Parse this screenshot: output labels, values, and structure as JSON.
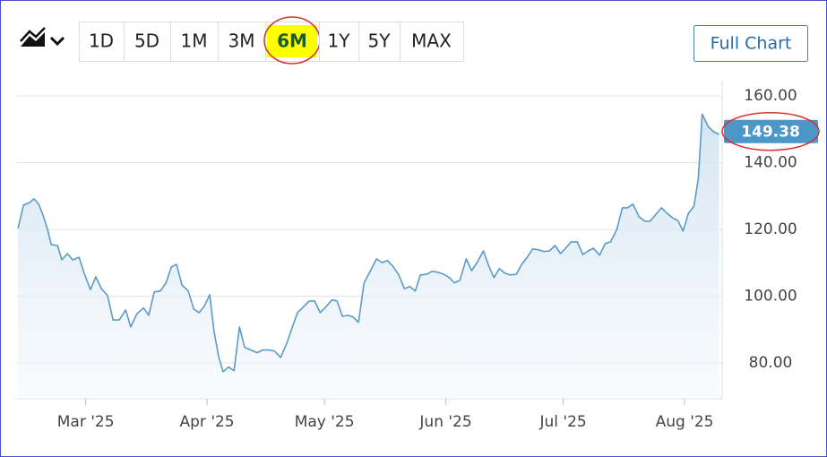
{
  "toolbar": {
    "ranges": [
      "1D",
      "5D",
      "1M",
      "3M",
      "6M",
      "1Y",
      "5Y",
      "MAX"
    ],
    "selected": 4,
    "full_chart": "Full Chart"
  },
  "chart_data": {
    "type": "area",
    "color": "#5b9bc6",
    "x": [
      42.7,
      44.1,
      45.7,
      46.8,
      48.0,
      49.1,
      50.2,
      51.2,
      52.8,
      53.9,
      55.3,
      56.7,
      58.3,
      59.6,
      61.2,
      62.6,
      64.0,
      65.6,
      67.0,
      68.6,
      70.2,
      71.5,
      73.1,
      74.8,
      76.1,
      77.5,
      79.1,
      80.5,
      81.9,
      83.2,
      84.6,
      86.2,
      87.6,
      89.0,
      90.3,
      91.7,
      92.8,
      94.0,
      95.1,
      96.5,
      97.9,
      99.3,
      100.6,
      102.2,
      103.8,
      105.2,
      106.8,
      108.2,
      109.8,
      111.4,
      112.8,
      114.1,
      115.8,
      117.1,
      118.5,
      119.9,
      121.3,
      122.9,
      124.2,
      125.6,
      127.0,
      128.3,
      129.7,
      131.1,
      132.7,
      134.3,
      135.7,
      137.1,
      138.4,
      140.0,
      141.4,
      142.8,
      144.2,
      145.5,
      147.1,
      148.5,
      149.9,
      151.5,
      152.9,
      154.2,
      155.6,
      157.2,
      158.6,
      160.0,
      161.6,
      162.9,
      164.3,
      165.7,
      167.1,
      168.4,
      170.0,
      171.4,
      172.8,
      174.2,
      175.8,
      177.1,
      178.5,
      179.9,
      181.3,
      182.6,
      184.0,
      185.6,
      187.0,
      188.4,
      189.7,
      191.3,
      192.7,
      194.1,
      195.7,
      197.1,
      198.4,
      199.8,
      201.4,
      202.8,
      204.2,
      205.5,
      207.1,
      208.5,
      209.9,
      211.3,
      212.6,
      214.0,
      215.4,
      216.5,
      217.5,
      219.0,
      220.4,
      221.8
    ],
    "values": [
      120.3,
      127.3,
      128.1,
      129.2,
      127.6,
      124.3,
      120.3,
      115.5,
      115.2,
      110.9,
      112.8,
      110.9,
      111.7,
      106.9,
      102.0,
      105.8,
      102.3,
      100.2,
      92.9,
      92.9,
      95.9,
      90.8,
      94.8,
      96.5,
      94.3,
      101.3,
      101.6,
      104.0,
      108.8,
      109.6,
      103.4,
      101.6,
      96.2,
      95.1,
      97.0,
      100.5,
      89.5,
      81.7,
      77.4,
      78.8,
      77.7,
      90.8,
      84.7,
      83.9,
      83.1,
      83.9,
      83.9,
      83.6,
      81.7,
      86.0,
      90.8,
      95.1,
      97.0,
      98.6,
      98.6,
      95.1,
      96.7,
      98.9,
      98.6,
      94.0,
      94.3,
      93.8,
      92.2,
      104.0,
      107.5,
      111.2,
      110.1,
      110.7,
      109.1,
      106.4,
      102.3,
      102.9,
      101.6,
      106.4,
      106.6,
      107.5,
      107.2,
      106.6,
      105.6,
      104.0,
      104.8,
      111.2,
      107.7,
      110.1,
      113.6,
      109.3,
      105.6,
      108.3,
      106.9,
      106.4,
      106.6,
      109.6,
      111.7,
      114.2,
      113.9,
      113.4,
      113.6,
      115.2,
      112.8,
      114.4,
      116.3,
      116.3,
      112.5,
      113.6,
      114.4,
      112.3,
      115.8,
      116.3,
      120.1,
      126.5,
      126.5,
      127.6,
      123.8,
      122.5,
      122.5,
      124.3,
      126.5,
      124.9,
      123.5,
      122.7,
      119.5,
      124.9,
      127.0,
      135.3,
      154.6,
      150.9,
      149.3,
      148.5
    ],
    "xlim": [
      42,
      222.6
    ],
    "xticks": [
      {
        "value": 60,
        "label": "Mar '25"
      },
      {
        "value": 91,
        "label": "Apr '25"
      },
      {
        "value": 121,
        "label": "May '25"
      },
      {
        "value": 152,
        "label": "Jun '25"
      },
      {
        "value": 182,
        "label": "Jul '25"
      },
      {
        "value": 213,
        "label": "Aug '25"
      }
    ],
    "ylim": [
      69.3,
      164.6
    ],
    "yticks": [
      {
        "value": 80,
        "label": "80.00"
      },
      {
        "value": 100,
        "label": "100.00"
      },
      {
        "value": 120,
        "label": "120.00"
      },
      {
        "value": 140,
        "label": "140.00"
      },
      {
        "value": 160,
        "label": "160.00"
      }
    ],
    "grid": true,
    "price_label": {
      "value": 149.38,
      "label": "149.38"
    }
  }
}
